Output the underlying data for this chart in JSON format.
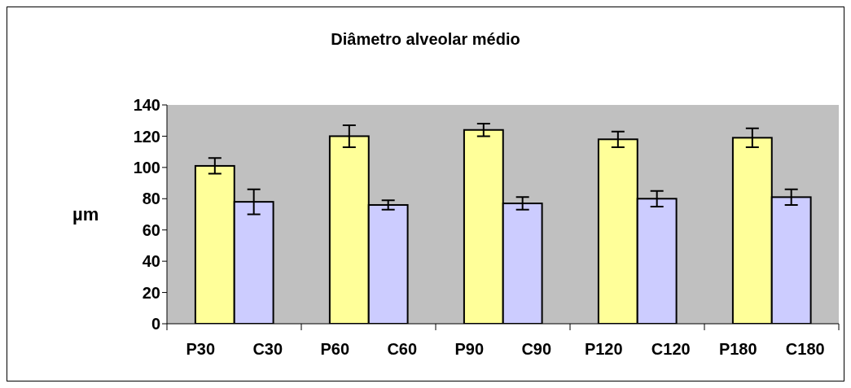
{
  "chart_data": {
    "type": "bar",
    "title": "Diâmetro alveolar médio",
    "ylabel": "µm",
    "categories": [
      "P30",
      "C30",
      "P60",
      "C60",
      "P90",
      "C90",
      "P120",
      "C120",
      "P180",
      "C180"
    ],
    "values": [
      101,
      78,
      120,
      76,
      124,
      77,
      118,
      80,
      119,
      81
    ],
    "errors": [
      5,
      8,
      7,
      3,
      4,
      4,
      5,
      5,
      6,
      5
    ],
    "colors": [
      "#ffff99",
      "#ccccff",
      "#ffff99",
      "#ccccff",
      "#ffff99",
      "#ccccff",
      "#ffff99",
      "#ccccff",
      "#ffff99",
      "#ccccff"
    ],
    "ylim": [
      0,
      140
    ],
    "yticks": [
      0,
      20,
      40,
      60,
      80,
      100,
      120,
      140
    ]
  }
}
